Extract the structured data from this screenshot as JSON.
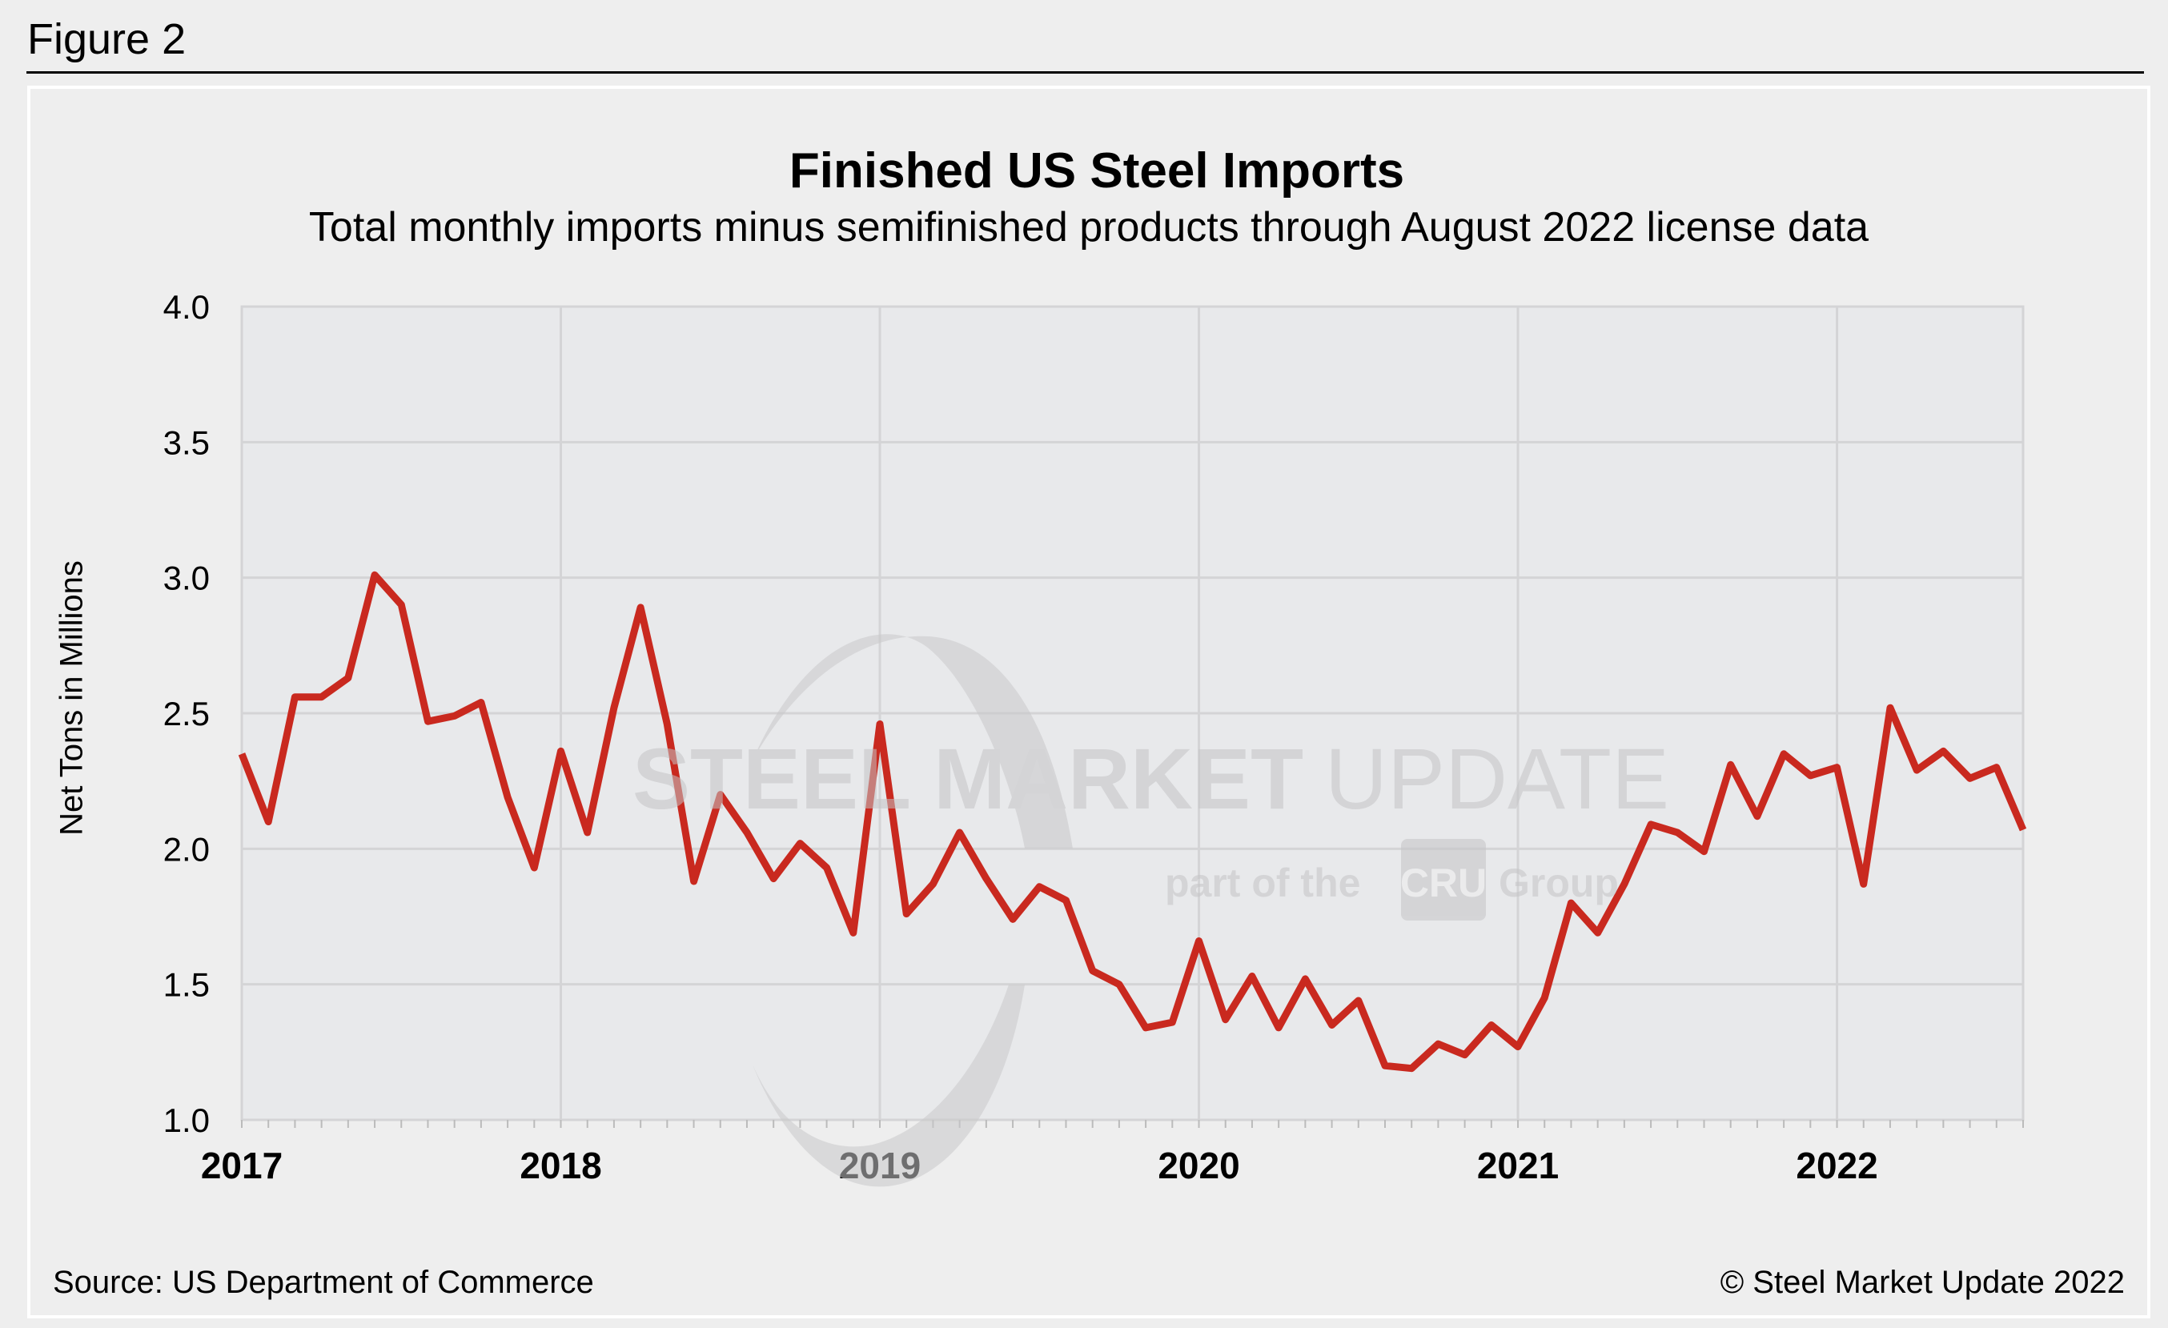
{
  "figure_label": "Figure 2",
  "source": "Source: US Department of Commerce",
  "copyright": "© Steel Market Update 2022",
  "watermark": {
    "line1_bold": "STEEL MARKET",
    "line1_light": "UPDATE",
    "line2_pre": "part of the",
    "line2_badge": "CRU",
    "line2_post": "Group"
  },
  "colors": {
    "line": "#c9291f",
    "plot_bg": "#e8e9eb",
    "grid": "#d4d4d6",
    "background": "#eeeeee"
  },
  "chart_data": {
    "type": "line",
    "title": "Finished US Steel Imports",
    "subtitle": "Total monthly imports minus semifinished products through August 2022 license data",
    "xlabel": "",
    "ylabel": "Net Tons in Millions",
    "ylim": [
      1.0,
      4.0
    ],
    "yticks": [
      "1.0",
      "1.5",
      "2.0",
      "2.5",
      "3.0",
      "3.5",
      "4.0"
    ],
    "xticks": [
      "2017",
      "2018",
      "2019",
      "2020",
      "2021",
      "2022"
    ],
    "x_start": "2017-01",
    "x_end": "2022-08",
    "frequency": "monthly",
    "grid": true,
    "values": [
      2.35,
      2.1,
      2.56,
      2.56,
      2.63,
      3.01,
      2.9,
      2.47,
      2.49,
      2.54,
      2.19,
      1.93,
      2.36,
      2.06,
      2.52,
      2.89,
      2.46,
      1.88,
      2.2,
      2.06,
      1.89,
      2.02,
      1.93,
      1.69,
      2.46,
      1.76,
      1.87,
      2.06,
      1.89,
      1.74,
      1.86,
      1.81,
      1.55,
      1.5,
      1.34,
      1.36,
      1.66,
      1.37,
      1.53,
      1.34,
      1.52,
      1.35,
      1.44,
      1.2,
      1.19,
      1.28,
      1.24,
      1.35,
      1.27,
      1.45,
      1.8,
      1.69,
      1.87,
      2.09,
      2.06,
      1.99,
      2.31,
      2.12,
      2.35,
      2.27,
      2.3,
      1.87,
      2.52,
      2.29,
      2.36,
      2.26,
      2.3,
      2.07
    ]
  }
}
